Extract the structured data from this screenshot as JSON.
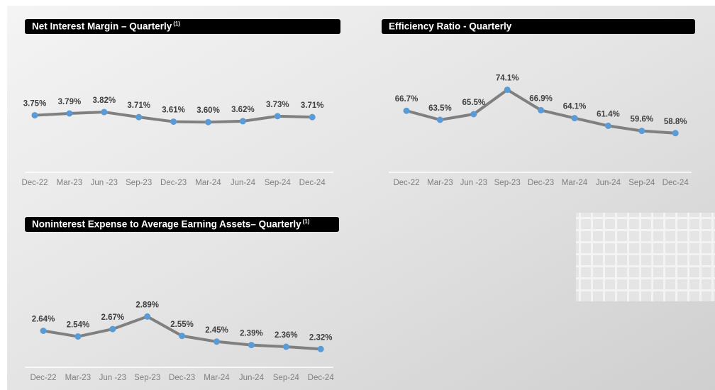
{
  "chart_data": [
    {
      "type": "line",
      "title": "Net Interest Margin – Quarterly",
      "title_superscript": "(1)",
      "categories": [
        "Dec-22",
        "Mar-23",
        "Jun -23",
        "Sep-23",
        "Dec-23",
        "Mar-24",
        "Jun-24",
        "Sep-24",
        "Dec-24"
      ],
      "values": [
        3.75,
        3.79,
        3.82,
        3.71,
        3.61,
        3.6,
        3.62,
        3.73,
        3.71
      ],
      "value_labels": [
        "3.75%",
        "3.79%",
        "3.82%",
        "3.71%",
        "3.61%",
        "3.60%",
        "3.62%",
        "3.73%",
        "3.71%"
      ],
      "ylim": [
        2.5,
        4.8
      ],
      "color": "#808080",
      "marker_color": "#5b9bd5"
    },
    {
      "type": "line",
      "title": "Efficiency Ratio - Quarterly",
      "categories": [
        "Dec-22",
        "Mar-23",
        "Jun -23",
        "Sep-23",
        "Dec-23",
        "Mar-24",
        "Jun-24",
        "Sep-24",
        "Dec-24"
      ],
      "values": [
        66.7,
        63.5,
        65.5,
        74.1,
        66.9,
        64.1,
        61.4,
        59.6,
        58.8
      ],
      "value_labels": [
        "66.7%",
        "63.5%",
        "65.5%",
        "74.1%",
        "66.9%",
        "64.1%",
        "61.4%",
        "59.6%",
        "58.8%"
      ],
      "ylim": [
        45,
        82
      ],
      "color": "#808080",
      "marker_color": "#5b9bd5"
    },
    {
      "type": "line",
      "title": "Noninterest Expense to Average Earning Assets– Quarterly",
      "title_superscript": "(1)",
      "categories": [
        "Dec-22",
        "Mar-23",
        "Jun -23",
        "Sep-23",
        "Dec-23",
        "Mar-24",
        "Jun-24",
        "Sep-24",
        "Dec-24"
      ],
      "values": [
        2.64,
        2.54,
        2.67,
        2.89,
        2.55,
        2.45,
        2.39,
        2.36,
        2.32
      ],
      "value_labels": [
        "2.64%",
        "2.54%",
        "2.67%",
        "2.89%",
        "2.55%",
        "2.45%",
        "2.39%",
        "2.36%",
        "2.32%"
      ],
      "ylim": [
        2.0,
        4.15
      ],
      "color": "#808080",
      "marker_color": "#5b9bd5"
    }
  ]
}
